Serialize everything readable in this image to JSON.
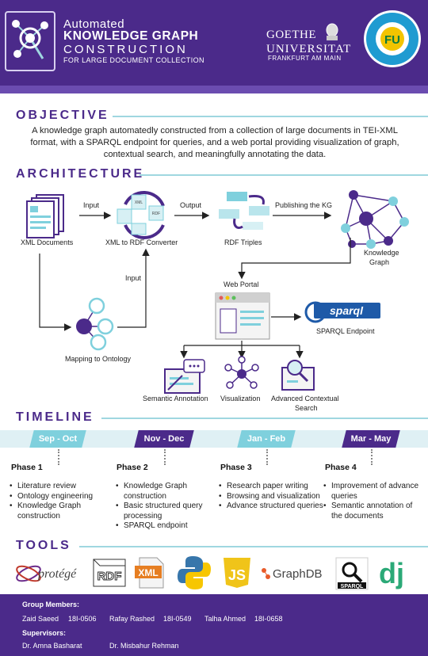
{
  "header": {
    "title_line1": "Automated",
    "title_line2": "KNOWLEDGE GRAPH",
    "title_line3": "CONSTRUCTION",
    "title_line4": "FOR LARGE DOCUMENT COLLECTION",
    "uni_line1": "GOETHE",
    "uni_line2": "UNIVERSITAT",
    "uni_line3": "FRANKFURT AM MAIN"
  },
  "objective": {
    "heading": "OBJECTIVE",
    "text": "A knowledge graph automatedly constructed from a collection of large documents in TEI-XML format, with a SPARQL endpoint for queries, and a web portal providing visualization of graph, contextual search, and meaningfully annotating the data."
  },
  "architecture": {
    "heading": "ARCHITECTURE",
    "xml_documents": "XML Documents",
    "input1": "Input",
    "converter": "XML to RDF Converter",
    "output": "Output",
    "rdf_triples": "RDF Triples",
    "publishing": "Publishing the KG",
    "kg_line1": "Knowledge",
    "kg_line2": "Graph",
    "web_portal": "Web Portal",
    "input2": "Input",
    "mapping": "Mapping to Ontology",
    "sparql_logo": "sparql",
    "sparql_endpoint": "SPARQL Endpoint",
    "semantic_annotation": "Semantic Annotation",
    "visualization": "Visualization",
    "advanced_line1": "Advanced Contextual",
    "advanced_line2": "Search",
    "xml_tag": "XML",
    "rdf_tag": "RDF"
  },
  "timeline": {
    "heading": "TIMELINE",
    "phases": [
      {
        "period": "Sep - Oct",
        "name": "Phase 1",
        "items": [
          "Literature review",
          "Ontology engineering",
          "Knowledge Graph construction"
        ]
      },
      {
        "period": "Nov  - Dec",
        "name": "Phase 2",
        "items": [
          "Knowledge Graph construction",
          "Basic structured query processing",
          "SPARQL endpoint"
        ]
      },
      {
        "period": "Jan - Feb",
        "name": "Phase 3",
        "items": [
          "Research paper writing",
          "Browsing and visualization",
          "Advance structured queries"
        ]
      },
      {
        "period": "Mar - May",
        "name": "Phase 4",
        "items": [
          "Improvement of advance queries",
          "Semantic annotation of the documents"
        ]
      }
    ]
  },
  "tools": {
    "heading": "TOOLS",
    "protege": "protégé",
    "rdf": "RDF",
    "xml": "XML",
    "js": "JS",
    "graphdb": "GraphDB",
    "sparql": "SPARQL",
    "django": "dj"
  },
  "footer": {
    "members_label": "Group Members:",
    "members": [
      {
        "name": "Zaid Saeed",
        "id": "18I-0506"
      },
      {
        "name": "Rafay Rashed",
        "id": "18I-0549"
      },
      {
        "name": "Talha Ahmed",
        "id": "18I-0658"
      }
    ],
    "supervisors_label": "Supervisors:",
    "supervisors": [
      "Dr. Amna Basharat",
      "Dr. Misbahur Rehman"
    ]
  },
  "colors": {
    "purple": "#4b2a8a",
    "teal": "#7fd0dd",
    "light_teal": "#dff0f4"
  }
}
